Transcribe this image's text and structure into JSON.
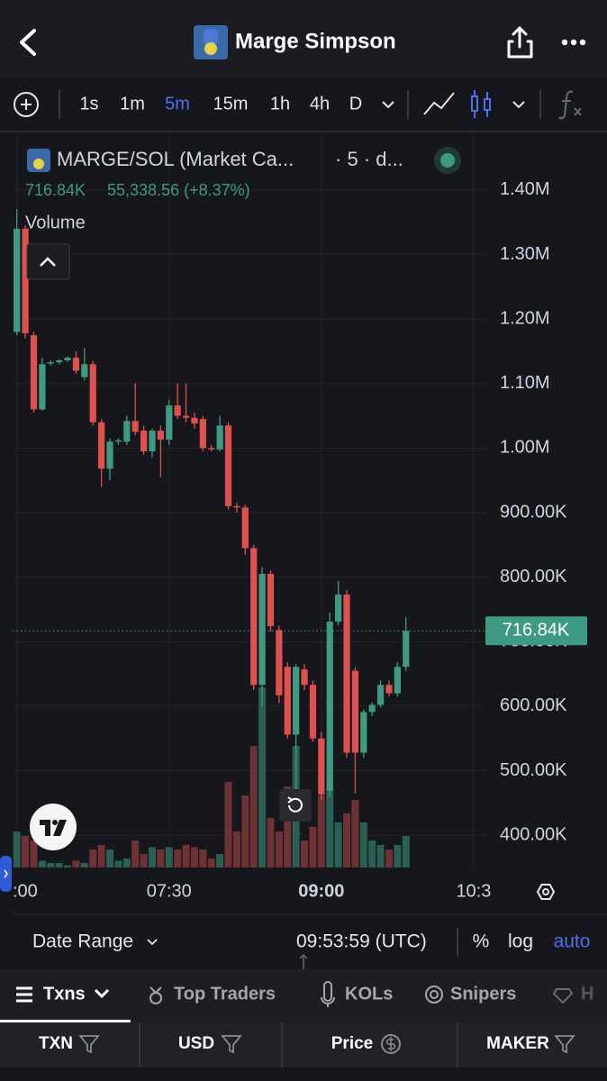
{
  "header": {
    "title": "Marge Simpson"
  },
  "toolbar": {
    "intervals": [
      "1s",
      "1m",
      "5m",
      "15m",
      "1h",
      "4h",
      "D"
    ],
    "active_interval_index": 2
  },
  "chart": {
    "symbol": "MARGE/SOL (Market Ca...",
    "symbol_suffix": "· 5 · d...",
    "change": "55,338.56 (+8.37%)",
    "volume_label": "Volume",
    "price": {
      "value": 716840,
      "label": "716.84K"
    },
    "up_color": "#3f9a84",
    "down_color": "#e0504f",
    "volume_up_color": "#2a5f54",
    "volume_down_color": "#6e3235",
    "ylim": [
      350000,
      1485000
    ],
    "yticks": [
      {
        "value": 1400000,
        "label": "1.40M"
      },
      {
        "value": 1300000,
        "label": "1.30M"
      },
      {
        "value": 1200000,
        "label": "1.20M"
      },
      {
        "value": 1100000,
        "label": "1.10M"
      },
      {
        "value": 1000000,
        "label": "1.00M"
      },
      {
        "value": 900000,
        "label": "900.00K"
      },
      {
        "value": 800000,
        "label": "800.00K"
      },
      {
        "value": 700000,
        "label": "700.00K"
      },
      {
        "value": 600000,
        "label": "600.00K"
      },
      {
        "value": 500000,
        "label": "500.00K"
      },
      {
        "value": 400000,
        "label": "400.00K"
      }
    ],
    "xlim": [
      -0.5,
      55.5
    ],
    "xticks": [
      {
        "value": 0,
        "label": ":00"
      },
      {
        "value": 18,
        "label": "07:30"
      },
      {
        "value": 36,
        "label": "09:00"
      },
      {
        "value": 54,
        "label": "10:3"
      }
    ],
    "grid": true,
    "volume_lim": [
      0,
      100
    ],
    "open": [
      1180000,
      1340000,
      1175000,
      1060000,
      1131000,
      1133000,
      1136000,
      1140000,
      1110000,
      1130000,
      1040000,
      968000,
      1010000,
      1010000,
      1042000,
      1027000,
      995000,
      1027000,
      1013000,
      1066000,
      1050000,
      1047000,
      1045000,
      1000000,
      998000,
      1035000,
      910000,
      908000,
      845000,
      633000,
      805000,
      718000,
      661000,
      556000,
      657000,
      633000,
      550000,
      469000,
      731000,
      773000,
      655000,
      528000,
      591000,
      602000,
      633000,
      620000,
      661000
    ],
    "high": [
      1370000,
      1345000,
      1180000,
      1140000,
      1136000,
      1138000,
      1142000,
      1150000,
      1155000,
      1135000,
      1045000,
      1015000,
      1015000,
      1050000,
      1100000,
      1035000,
      1030000,
      1035000,
      1075000,
      1100000,
      1100000,
      1055000,
      1050000,
      1005000,
      1050000,
      1040000,
      915000,
      912000,
      850000,
      815000,
      810000,
      725000,
      668000,
      665000,
      665000,
      640000,
      560000,
      745000,
      794000,
      780000,
      660000,
      595000,
      606000,
      640000,
      640000,
      668000,
      738000
    ],
    "low": [
      1175000,
      1170000,
      1055000,
      1058000,
      1128000,
      1130000,
      1134000,
      1115000,
      1105000,
      1035000,
      940000,
      950000,
      1005000,
      1005000,
      1020000,
      990000,
      985000,
      955000,
      1005000,
      1045000,
      1040000,
      1030000,
      995000,
      995000,
      995000,
      905000,
      900000,
      835000,
      625000,
      600000,
      715000,
      605000,
      550000,
      450000,
      625000,
      545000,
      455000,
      460000,
      725000,
      520000,
      465000,
      520000,
      585000,
      598000,
      615000,
      615000,
      655000
    ],
    "close": [
      1340000,
      1178000,
      1060000,
      1130000,
      1133000,
      1136000,
      1140000,
      1120000,
      1130000,
      1040000,
      968000,
      1010000,
      1012000,
      1042000,
      1025000,
      995000,
      1027000,
      1013000,
      1066000,
      1050000,
      1047000,
      1038000,
      1000000,
      998000,
      1035000,
      910000,
      908000,
      845000,
      633000,
      805000,
      724000,
      617000,
      556000,
      661000,
      633000,
      550000,
      463000,
      731000,
      773000,
      528000,
      528000,
      591000,
      602000,
      633000,
      620000,
      661000,
      716840
    ],
    "volume": [
      16,
      14,
      12,
      3,
      2,
      2,
      1,
      3,
      2,
      8,
      10,
      8,
      3,
      4,
      12,
      6,
      9,
      8,
      9,
      8,
      10,
      9,
      8,
      4,
      6,
      38,
      16,
      32,
      54,
      80,
      22,
      16,
      36,
      54,
      12,
      18,
      32,
      36,
      20,
      24,
      30,
      20,
      12,
      10,
      8,
      10,
      14
    ]
  },
  "footer": {
    "date_range": "Date Range",
    "time": "09:53:59 (UTC)",
    "percent": "%",
    "log": "log",
    "auto": "auto"
  },
  "tabs": [
    "Txns",
    "Top Traders",
    "KOLs",
    "Snipers",
    "H"
  ],
  "table": {
    "headers": [
      "TXN",
      "USD",
      "Price",
      "MAKER"
    ]
  }
}
